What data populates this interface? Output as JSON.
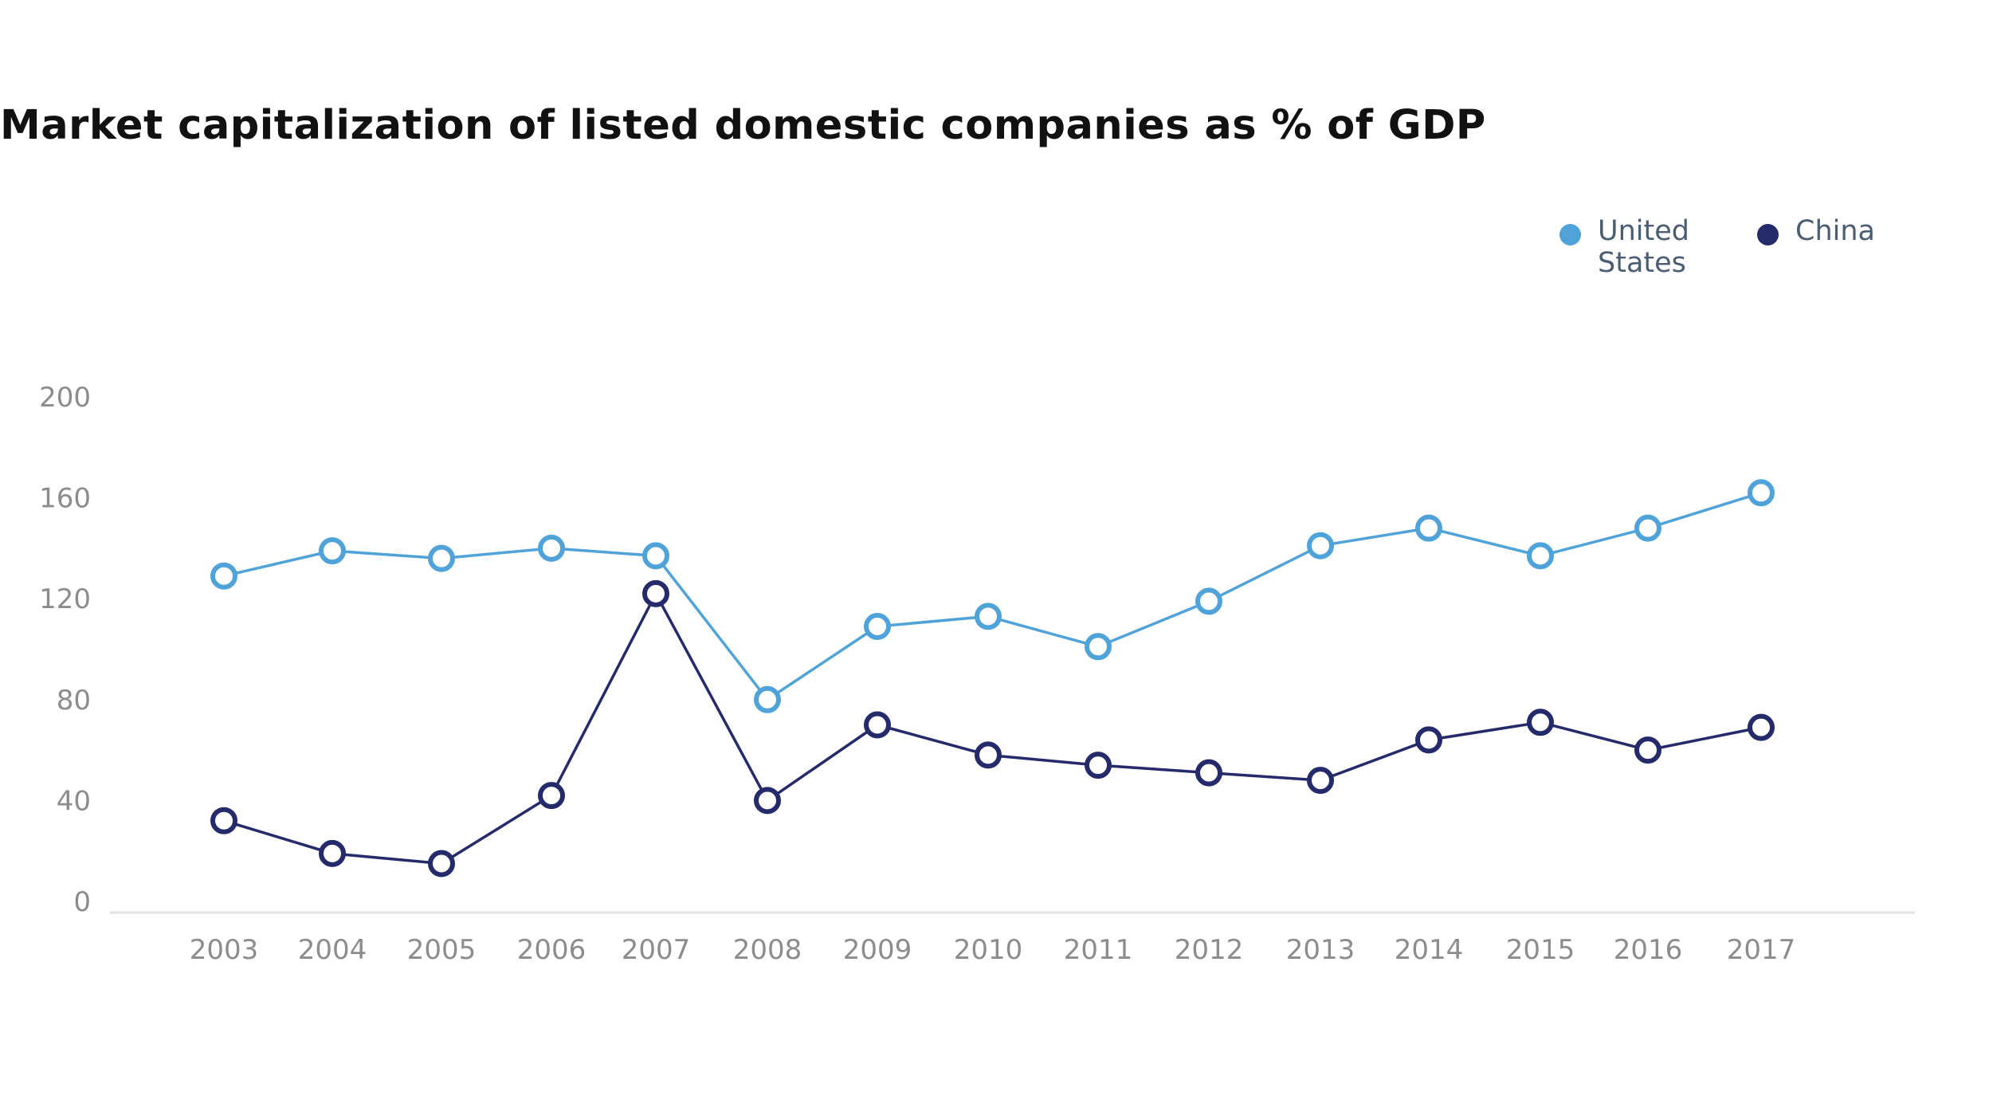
{
  "chart_data": {
    "type": "line",
    "title": "Market capitalization of listed domestic companies as % of GDP",
    "xlabel": "",
    "ylabel": "",
    "categories": [
      "2003",
      "2004",
      "2005",
      "2006",
      "2007",
      "2008",
      "2009",
      "2010",
      "2011",
      "2012",
      "2013",
      "2014",
      "2015",
      "2016",
      "2017"
    ],
    "ylim": [
      0,
      200
    ],
    "yticks": [
      0,
      40,
      80,
      120,
      160,
      200
    ],
    "series": [
      {
        "name": "United States",
        "label_lines": [
          "United",
          "States"
        ],
        "color": "#4fa3d9",
        "values": [
          129,
          139,
          136,
          140,
          137,
          80,
          109,
          113,
          101,
          119,
          141,
          148,
          137,
          148,
          162
        ]
      },
      {
        "name": "China",
        "label_lines": [
          "China"
        ],
        "color": "#252a6b",
        "values": [
          32,
          19,
          15,
          42,
          122,
          40,
          70,
          58,
          54,
          51,
          48,
          64,
          71,
          60,
          69
        ]
      }
    ],
    "legend_position": "top-right"
  }
}
